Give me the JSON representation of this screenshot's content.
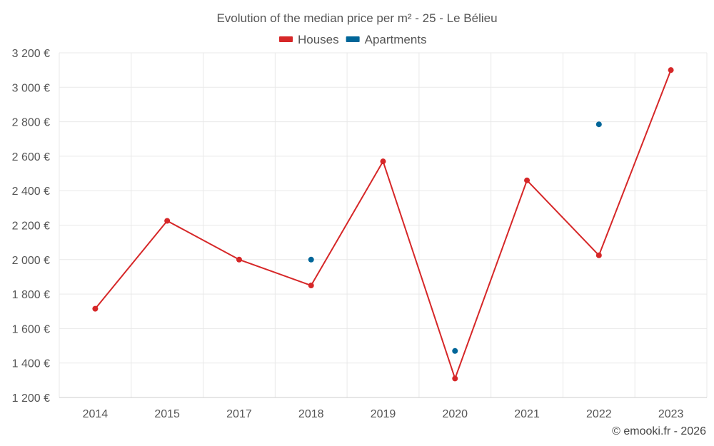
{
  "chart_data": {
    "type": "line",
    "title": "Evolution of the median price per m² - 25 - Le Bélieu",
    "categories": [
      "2014",
      "2015",
      "2017",
      "2018",
      "2019",
      "2020",
      "2021",
      "2022",
      "2023"
    ],
    "y_ticks": [
      "1 200 €",
      "1 400 €",
      "1 600 €",
      "1 800 €",
      "2 000 €",
      "2 200 €",
      "2 400 €",
      "2 600 €",
      "2 800 €",
      "3 000 €",
      "3 200 €"
    ],
    "ylim": [
      1200,
      3200
    ],
    "grid": true,
    "legend_position": "top",
    "series": [
      {
        "name": "Houses",
        "color": "#d62728",
        "values": [
          1715,
          2225,
          2000,
          1850,
          2570,
          1310,
          2460,
          2025,
          3100
        ]
      },
      {
        "name": "Apartments",
        "color": "#006699",
        "values": [
          null,
          null,
          null,
          2000,
          null,
          1470,
          null,
          2785,
          null
        ]
      }
    ]
  },
  "credit": "© emooki.fr - 2026"
}
